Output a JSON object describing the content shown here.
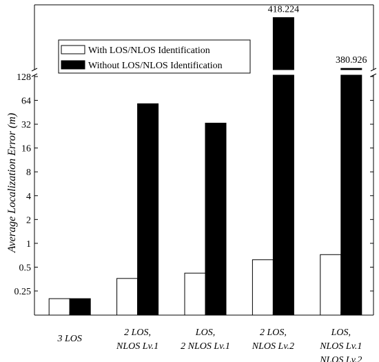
{
  "chart_data": {
    "type": "bar",
    "y_scale": "log2",
    "axis_break": {
      "from": 128,
      "to": 380
    },
    "ylabel": "Average Localization Error (m)",
    "yticks": [
      {
        "value": 0.25,
        "label": "0.25"
      },
      {
        "value": 0.5,
        "label": "0.5"
      },
      {
        "value": 1,
        "label": "1"
      },
      {
        "value": 2,
        "label": "2"
      },
      {
        "value": 4,
        "label": "4"
      },
      {
        "value": 8,
        "label": "8"
      },
      {
        "value": 16,
        "label": "16"
      },
      {
        "value": 32,
        "label": "32"
      },
      {
        "value": 64,
        "label": "64"
      },
      {
        "value": 128,
        "label": "128"
      }
    ],
    "categories": [
      {
        "lines": [
          "3 LOS"
        ]
      },
      {
        "lines": [
          "2 LOS,",
          "NLOS Lv.1"
        ]
      },
      {
        "lines": [
          "LOS,",
          "2 NLOS Lv.1"
        ]
      },
      {
        "lines": [
          "2 LOS,",
          "NLOS Lv.2"
        ]
      },
      {
        "lines": [
          "LOS,",
          "NLOS Lv.1",
          "NLOS Lv.2"
        ]
      }
    ],
    "series": [
      {
        "name": "With LOS/NLOS Identification",
        "color": "#ffffff",
        "values": [
          0.2,
          0.36,
          0.42,
          0.62,
          0.72
        ]
      },
      {
        "name": "Without LOS/NLOS Identification",
        "color": "#000000",
        "values": [
          0.2,
          58,
          33,
          418.224,
          380.926
        ]
      }
    ],
    "data_labels": [
      {
        "category": 3,
        "series": 1,
        "text": "418.224"
      },
      {
        "category": 4,
        "series": 1,
        "text": "380.926"
      }
    ],
    "legend_position": "top-left"
  }
}
